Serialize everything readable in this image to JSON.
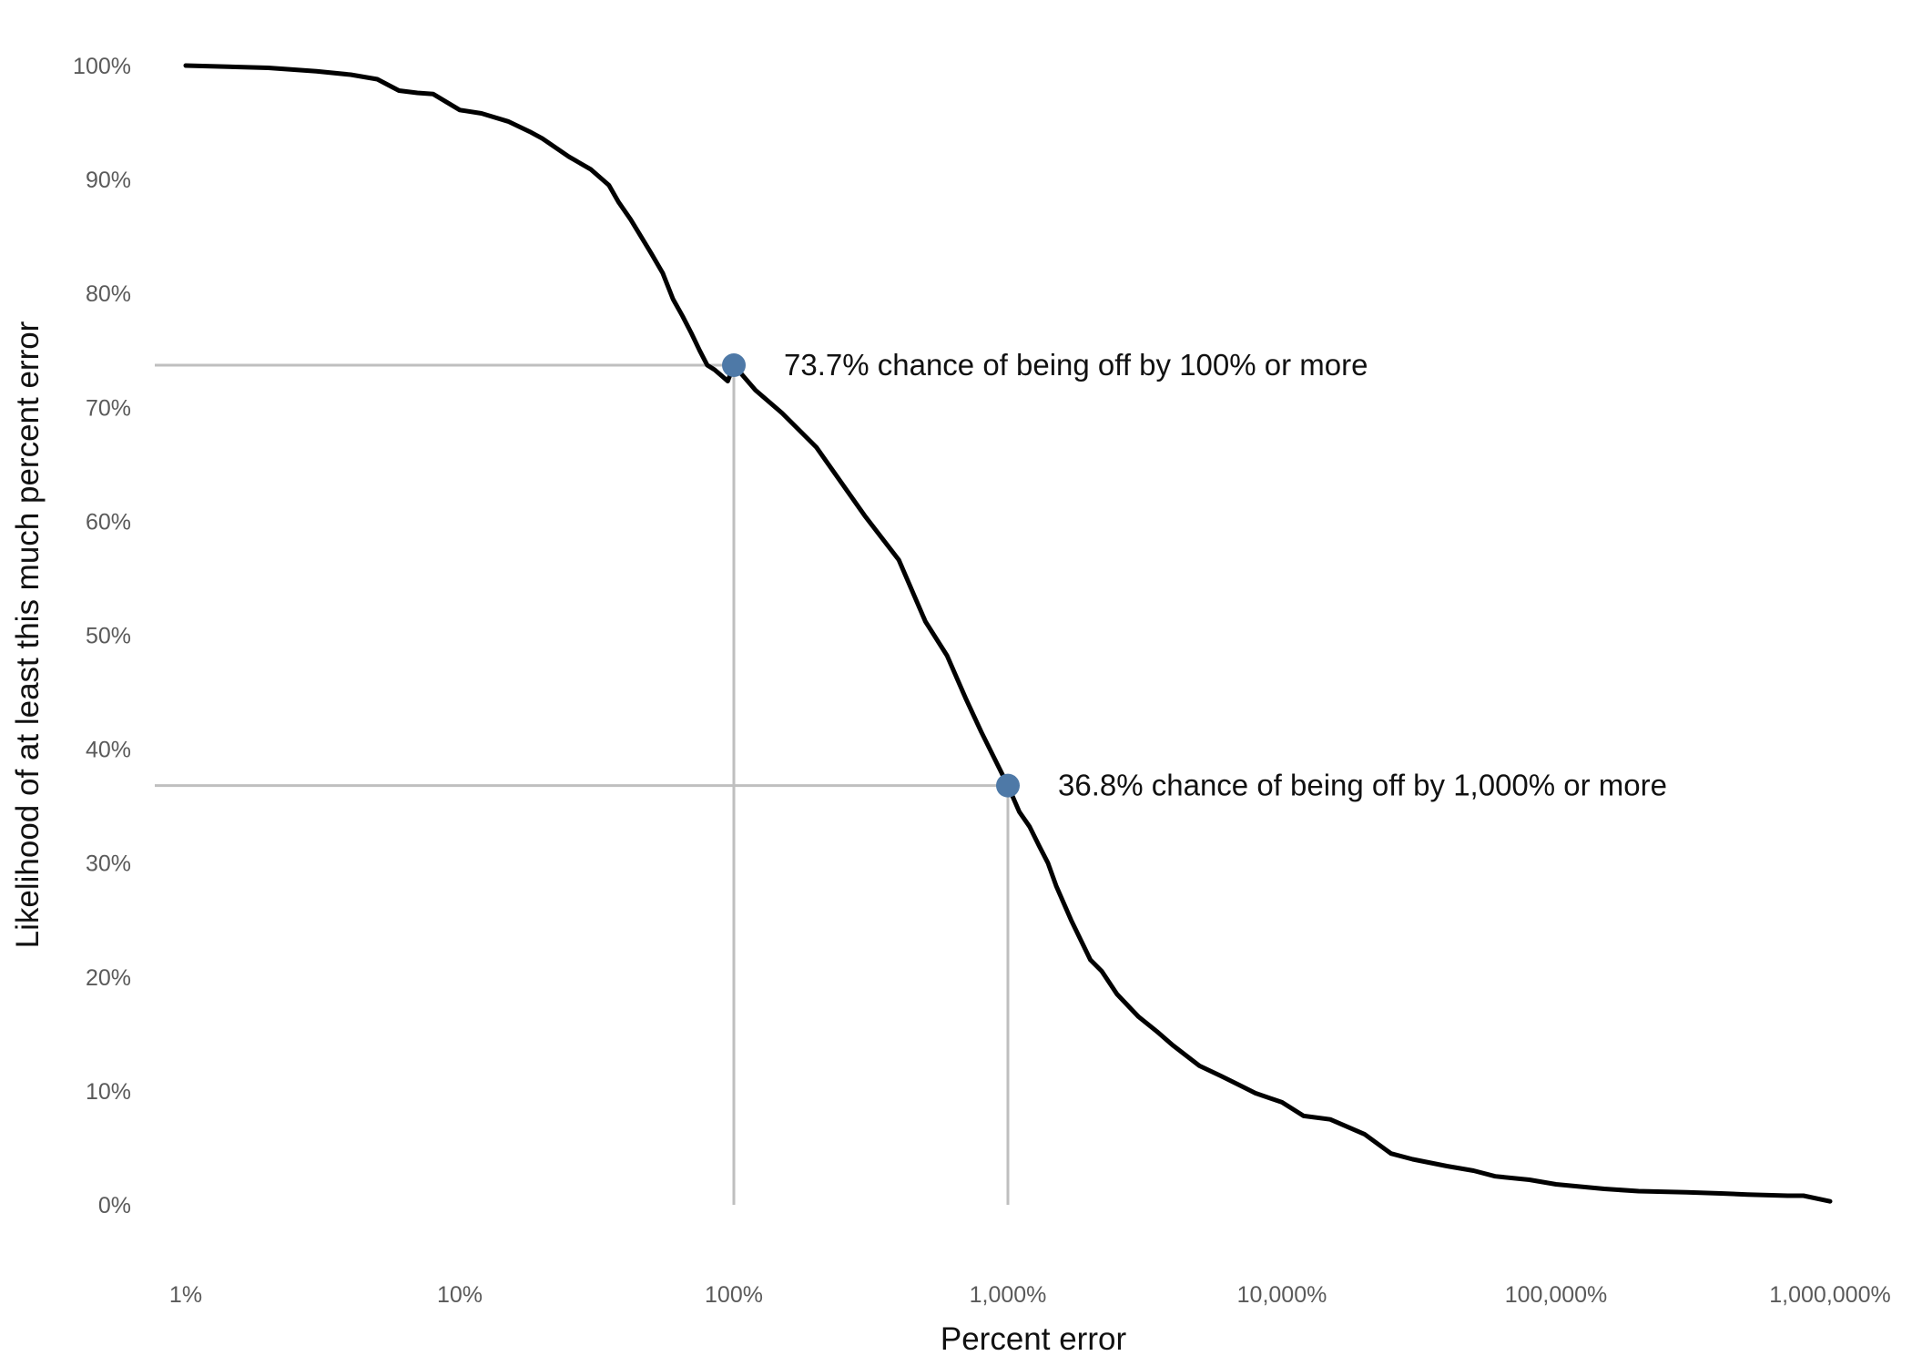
{
  "chart_data": {
    "type": "line",
    "title": "",
    "xlabel": "Percent error",
    "ylabel": "Likelihood of at least this much percent error",
    "x_scale": "log",
    "xlim": [
      1,
      1000000
    ],
    "ylim": [
      0,
      100
    ],
    "grid": false,
    "legend": "none",
    "x_ticks": [
      {
        "value": 1,
        "label": "1%"
      },
      {
        "value": 10,
        "label": "10%"
      },
      {
        "value": 100,
        "label": "100%"
      },
      {
        "value": 1000,
        "label": "1,000%"
      },
      {
        "value": 10000,
        "label": "10,000%"
      },
      {
        "value": 100000,
        "label": "100,000%"
      },
      {
        "value": 1000000,
        "label": "1,000,000%"
      }
    ],
    "y_ticks": [
      {
        "value": 0,
        "label": "0%"
      },
      {
        "value": 10,
        "label": "10%"
      },
      {
        "value": 20,
        "label": "20%"
      },
      {
        "value": 30,
        "label": "30%"
      },
      {
        "value": 40,
        "label": "40%"
      },
      {
        "value": 50,
        "label": "50%"
      },
      {
        "value": 60,
        "label": "60%"
      },
      {
        "value": 70,
        "label": "70%"
      },
      {
        "value": 80,
        "label": "80%"
      },
      {
        "value": 90,
        "label": "90%"
      },
      {
        "value": 100,
        "label": "100%"
      }
    ],
    "series": [
      {
        "color": "#000000",
        "x": [
          1,
          2,
          3,
          4,
          5,
          6,
          7,
          8,
          10,
          12,
          15,
          18,
          20,
          25,
          30,
          35,
          38,
          42,
          50,
          55,
          60,
          65,
          70,
          75,
          80,
          85,
          90,
          95,
          100,
          120,
          150,
          200,
          300,
          400,
          500,
          600,
          700,
          800,
          1000,
          1100,
          1200,
          1300,
          1400,
          1500,
          1700,
          2000,
          2200,
          2500,
          3000,
          3500,
          4000,
          5000,
          6000,
          7000,
          8000,
          10000,
          12000,
          15000,
          20000,
          25000,
          30000,
          40000,
          50000,
          60000,
          80000,
          100000,
          150000,
          200000,
          300000,
          400000,
          500000,
          700000,
          800000,
          1000000
        ],
        "y": [
          100,
          99.8,
          99.5,
          99.2,
          98.8,
          97.8,
          97.6,
          97.5,
          96.1,
          95.8,
          95.1,
          94.2,
          93.6,
          92.0,
          90.9,
          89.5,
          88.0,
          86.5,
          83.5,
          81.8,
          79.5,
          78.0,
          76.5,
          75.0,
          73.7,
          73.3,
          72.8,
          72.3,
          73.7,
          71.5,
          69.5,
          66.5,
          60.5,
          56.6,
          51.2,
          48.2,
          44.5,
          41.5,
          36.8,
          34.5,
          33.2,
          31.5,
          30.0,
          28.0,
          25.0,
          21.5,
          20.5,
          18.5,
          16.5,
          15.2,
          14.0,
          12.2,
          11.3,
          10.5,
          9.8,
          9.0,
          7.8,
          7.5,
          6.2,
          4.5,
          4.0,
          3.4,
          3.0,
          2.5,
          2.2,
          1.8,
          1.4,
          1.2,
          1.1,
          1.0,
          0.9,
          0.8,
          0.8,
          0.3
        ]
      }
    ],
    "highlights": [
      {
        "x": 100,
        "y": 73.7,
        "label": "73.7% chance of being off by 100% or more",
        "color": "#4e79a7"
      },
      {
        "x": 1000,
        "y": 36.8,
        "label": "36.8% chance of being off by 1,000% or more",
        "color": "#4e79a7"
      }
    ],
    "reference_line_color": "#bfbfbf"
  }
}
